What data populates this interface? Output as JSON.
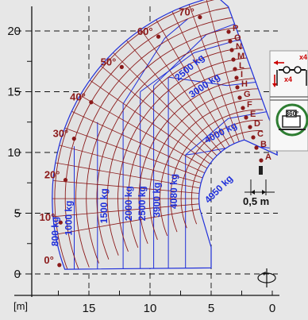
{
  "chart_data": {
    "type": "line",
    "title": "",
    "xlabel": "[m]",
    "ylabel": "",
    "xlim": [
      -0.5,
      20.2
    ],
    "ylim": [
      -1.0,
      22.0
    ],
    "x_reversed": true,
    "grid": true,
    "x_ticks": [
      0,
      5,
      10,
      15
    ],
    "y_ticks": [
      0,
      5,
      10,
      15,
      20
    ],
    "angle_labels": [
      {
        "label": "0°",
        "x": 18.0,
        "y": 0.8
      },
      {
        "label": "10°",
        "x": 17.9,
        "y": 4.3
      },
      {
        "label": "20°",
        "x": 17.5,
        "y": 7.8
      },
      {
        "label": "30°",
        "x": 16.8,
        "y": 11.2
      },
      {
        "label": "40°",
        "x": 15.4,
        "y": 14.2
      },
      {
        "label": "50°",
        "x": 12.9,
        "y": 17.1
      },
      {
        "label": "60°",
        "x": 9.9,
        "y": 19.6
      },
      {
        "label": "70°",
        "x": 6.5,
        "y": 21.2
      }
    ],
    "boom_positions": [
      "A",
      "B",
      "C",
      "D",
      "E",
      "F",
      "G",
      "H",
      "I",
      "L",
      "M",
      "N",
      "O",
      "P"
    ],
    "load_zones": [
      {
        "label": "800 kg",
        "x": 17.5,
        "y": 3.5
      },
      {
        "label": "1000 kg",
        "x": 16.4,
        "y": 4.6
      },
      {
        "label": "1500 kg",
        "x": 13.5,
        "y": 5.6
      },
      {
        "label": "2000 kg",
        "x": 11.5,
        "y": 5.8
      },
      {
        "label": "2500 kg",
        "x": 10.4,
        "y": 5.8
      },
      {
        "label": "3900 kg",
        "x": 9.2,
        "y": 6.1
      },
      {
        "label": "4080 kg",
        "x": 7.8,
        "y": 6.8
      },
      {
        "label": "4950 kg",
        "x": 4.2,
        "y": 6.8
      },
      {
        "label": "4000 kg",
        "x": 4.1,
        "y": 11.4
      },
      {
        "label": "3000 kg",
        "x": 5.4,
        "y": 15.3
      },
      {
        "label": "2500 kg",
        "x": 6.6,
        "y": 16.8
      }
    ],
    "annotations": {
      "offset": "0,5 m",
      "stabilizer": "x4",
      "rotation": "360°"
    },
    "colors": {
      "background": "#e7e7e7",
      "boom": "#8b1a1a",
      "load": "#1f2fd9",
      "axis": "#111111",
      "panel": "#2e7d32"
    }
  }
}
